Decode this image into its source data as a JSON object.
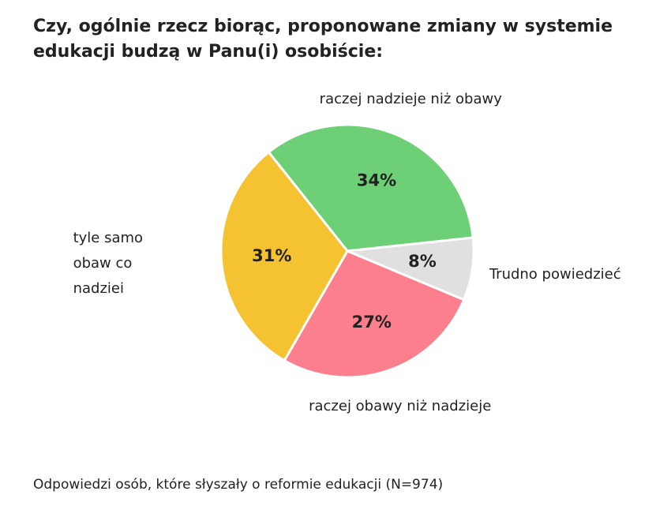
{
  "chart_data": {
    "type": "pie",
    "title": "Czy, ogólnie rzecz biorąc, proponowane zmiany w systemie edukacji budzą w Panu(i) osobiście:",
    "categories": [
      "raczej nadzieje niż obawy",
      "Trudno powiedzieć",
      "raczej obawy niż nadzieje",
      "tyle samo obaw co nadziei"
    ],
    "values": [
      34,
      8,
      27,
      31
    ],
    "value_labels": [
      "34%",
      "8%",
      "27%",
      "31%"
    ],
    "colors": [
      "#6dcf76",
      "#e0e0e0",
      "#fb7f8c",
      "#f5c231"
    ],
    "note": "Odpowiedzi osób, które słyszały o reformie edukacji (N=974)"
  }
}
